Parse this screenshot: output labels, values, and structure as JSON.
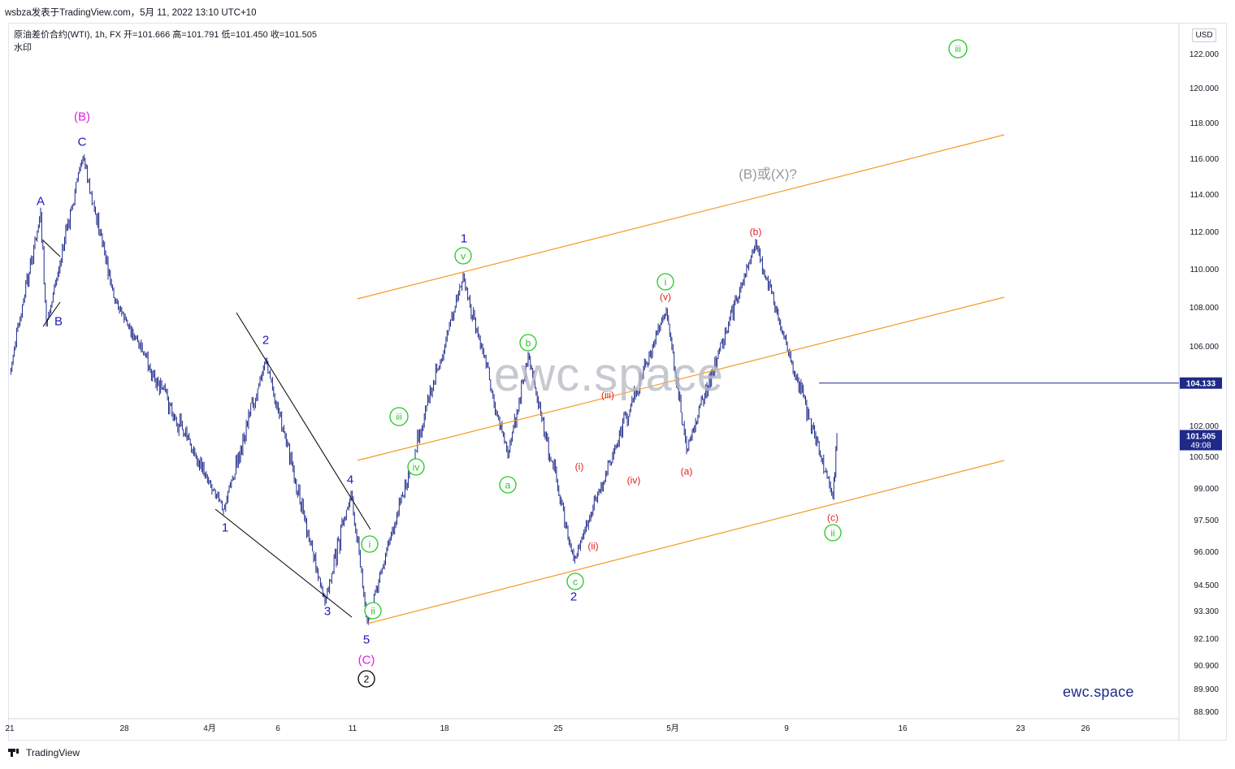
{
  "header": {
    "publisher_line": "wsbza发表于TradingView.com，5月 11, 2022 13:10 UTC+10",
    "symbol_line": "原油差价合约(WTI), 1h, FX  开=101.666  高=101.791  低=101.450  收=101.505",
    "watermark_label": "水印",
    "currency_button": "USD"
  },
  "footer": {
    "logo_text": "TradingView"
  },
  "watermark_text": "ewc.space",
  "brand_text": "ewc.space",
  "price_axis": {
    "ticks": [
      "122.000",
      "120.000",
      "118.000",
      "116.000",
      "114.000",
      "112.000",
      "110.000",
      "108.000",
      "106.000",
      "102.000",
      "100.500",
      "99.000",
      "97.500",
      "96.000",
      "94.500",
      "93.300",
      "92.100",
      "90.900",
      "89.900",
      "88.900"
    ],
    "marker_level": "104.133",
    "last_price": "101.505",
    "countdown": "49:08"
  },
  "time_axis": {
    "ticks": [
      "21",
      "28",
      "4月",
      "6",
      "11",
      "18",
      "25",
      "5月",
      "9",
      "16",
      "23",
      "26"
    ]
  },
  "colors": {
    "candle": "#1e2a8a",
    "channel": "#f59a23",
    "wedge": "#000000",
    "blue_label": "#1a1ab8",
    "green_label": "#22c822",
    "red_label": "#e02020",
    "magenta_label": "#e020e0",
    "grey_label": "#9a9a9a"
  },
  "chart_data": {
    "type": "line",
    "instrument": "原油差价合约(WTI)",
    "interval": "1h",
    "ohlc_last": {
      "open": 101.666,
      "high": 101.791,
      "low": 101.45,
      "close": 101.505
    },
    "ylim": [
      88.9,
      122.0
    ],
    "x_range": [
      "21",
      "26"
    ],
    "price_path": [
      {
        "x": "21",
        "y": 104.6
      },
      {
        "x": "A",
        "y": 113.0
      },
      {
        "x": "B",
        "y": 107.0
      },
      {
        "x": "C / (B)",
        "y": 116.2
      },
      {
        "x": "28",
        "y": 108.5
      },
      {
        "x": "1",
        "y": 98.0
      },
      {
        "x": "2",
        "y": 105.3
      },
      {
        "x": "3",
        "y": 93.7
      },
      {
        "x": "4",
        "y": 98.8
      },
      {
        "x": "5 / (C) / ②",
        "y": 92.8
      },
      {
        "x": "1 (v)",
        "y": 109.6
      },
      {
        "x": "a",
        "y": 100.5
      },
      {
        "x": "b",
        "y": 105.5
      },
      {
        "x": "c / 2",
        "y": 95.6
      },
      {
        "x": "i (v)",
        "y": 107.9
      },
      {
        "x": "(a)",
        "y": 100.8
      },
      {
        "x": "(b)",
        "y": 111.4
      },
      {
        "x": "(c) / ii",
        "y": 98.6
      },
      {
        "x": "last",
        "y": 101.505
      }
    ],
    "horizontal_line": 104.133,
    "wave_labels": [
      {
        "text": "(B)",
        "group": "magenta"
      },
      {
        "text": "C",
        "group": "blue"
      },
      {
        "text": "A",
        "group": "blue"
      },
      {
        "text": "B",
        "group": "blue"
      },
      {
        "text": "2",
        "group": "blue"
      },
      {
        "text": "1",
        "group": "blue"
      },
      {
        "text": "3",
        "group": "blue"
      },
      {
        "text": "4",
        "group": "blue"
      },
      {
        "text": "5",
        "group": "blue"
      },
      {
        "text": "(C)",
        "group": "magenta"
      },
      {
        "text": "1",
        "group": "blue"
      },
      {
        "text": "2",
        "group": "blue"
      },
      {
        "text": "v",
        "group": "green"
      },
      {
        "text": "iii",
        "group": "green"
      },
      {
        "text": "iv",
        "group": "green"
      },
      {
        "text": "i",
        "group": "green"
      },
      {
        "text": "ii",
        "group": "green"
      },
      {
        "text": "a",
        "group": "green"
      },
      {
        "text": "b",
        "group": "green"
      },
      {
        "text": "c",
        "group": "green"
      },
      {
        "text": "i",
        "group": "green"
      },
      {
        "text": "ii",
        "group": "green"
      },
      {
        "text": "iii",
        "group": "green"
      },
      {
        "text": "(i)",
        "group": "red"
      },
      {
        "text": "(ii)",
        "group": "red"
      },
      {
        "text": "(iii)",
        "group": "red"
      },
      {
        "text": "(iv)",
        "group": "red"
      },
      {
        "text": "(v)",
        "group": "red"
      },
      {
        "text": "(a)",
        "group": "red"
      },
      {
        "text": "(b)",
        "group": "red"
      },
      {
        "text": "(c)",
        "group": "red"
      },
      {
        "text": "(B)或(X)?",
        "group": "grey"
      },
      {
        "text": "2",
        "group": "black-circle"
      }
    ]
  }
}
